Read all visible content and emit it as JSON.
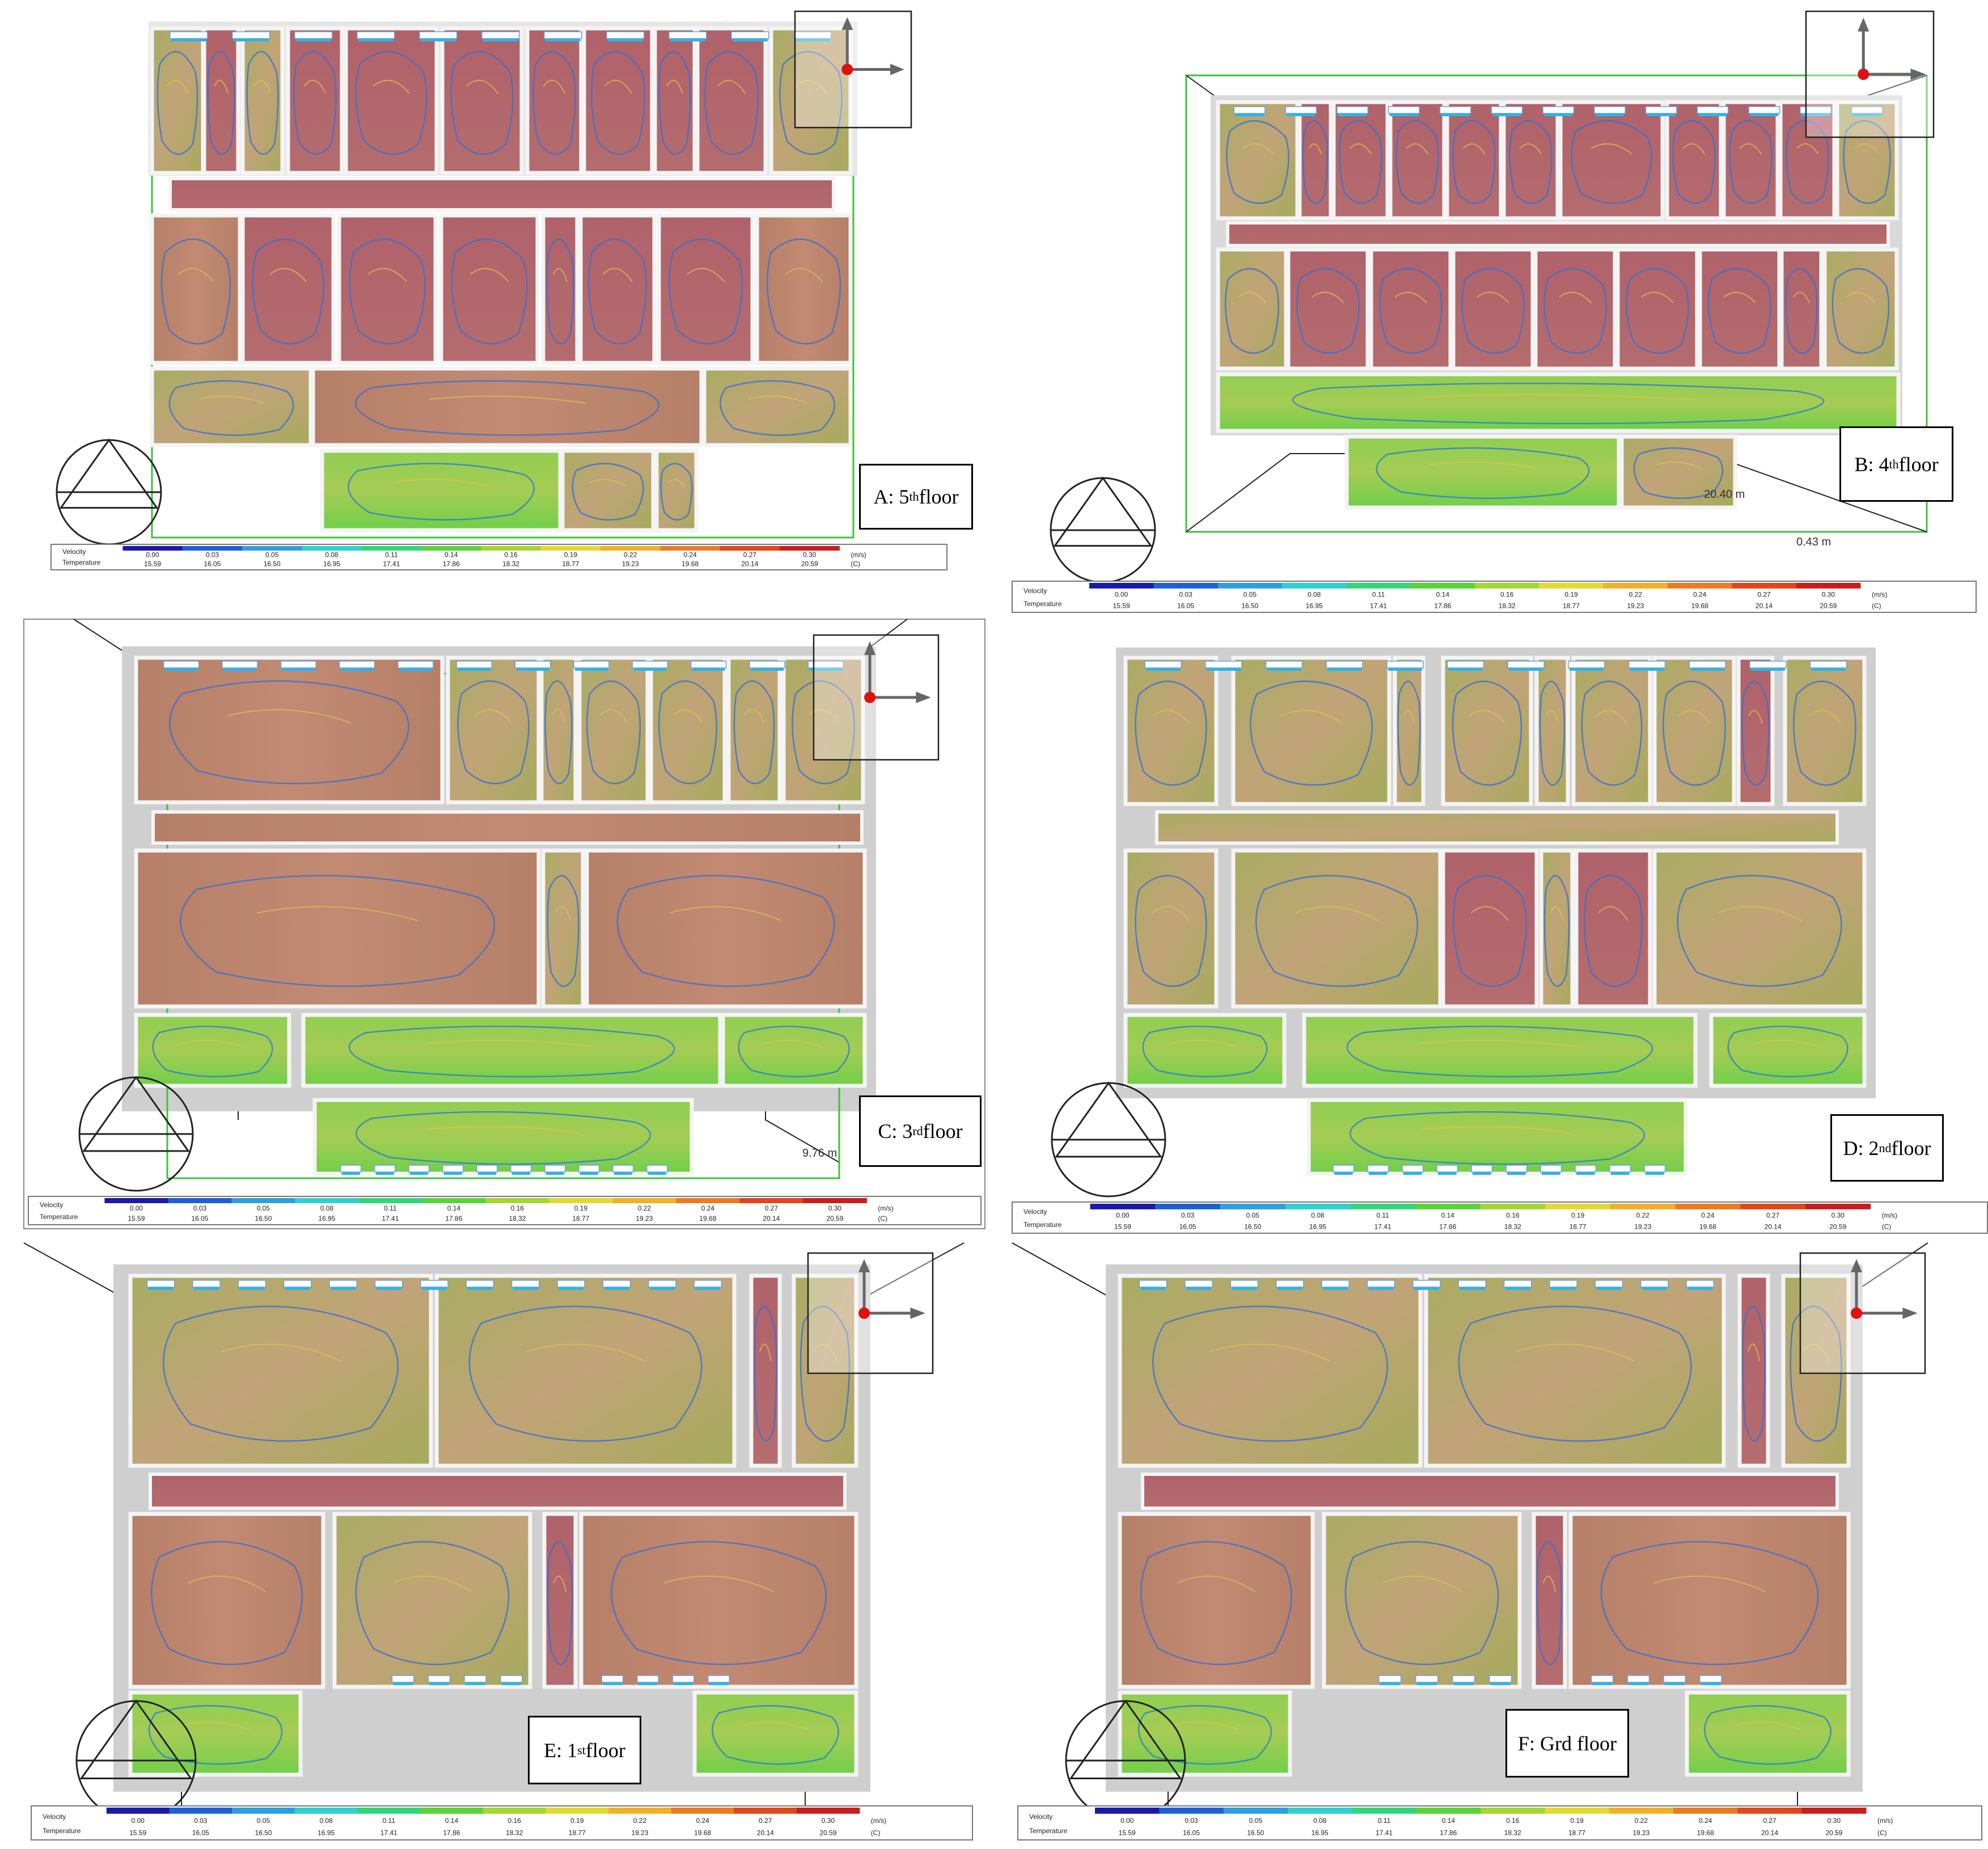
{
  "legend": {
    "velocity_label": "Velocity",
    "temperature_label": "Temperature",
    "velocity_unit": "(m/s)",
    "temperature_unit": "(C)",
    "velocity_ticks": [
      "0.00",
      "0.03",
      "0.05",
      "0.08",
      "0.11",
      "0.14",
      "0.16",
      "0.19",
      "0.22",
      "0.24",
      "0.27",
      "0.30"
    ],
    "temperature_ticks": [
      "15.59",
      "16.05",
      "16.50",
      "16.95",
      "17.41",
      "17.86",
      "18.32",
      "18.77",
      "19.23",
      "19.68",
      "20.14",
      "20.59"
    ],
    "colors": [
      "#1a1aa8",
      "#1f5fd6",
      "#2f9ee0",
      "#2fd0d0",
      "#33d57a",
      "#5ad23a",
      "#a4d634",
      "#e4d834",
      "#f0b02a",
      "#ec7a22",
      "#e0461c",
      "#c81e1e"
    ]
  },
  "panels": [
    {
      "id": "A",
      "prefix": "A: 5",
      "sup": "th",
      "suffix": " floor",
      "dimension": "",
      "dimension2": ""
    },
    {
      "id": "B",
      "prefix": "B: 4",
      "sup": "th",
      "suffix": " floor",
      "dimension": "20.40 m",
      "dimension2": "0.43 m"
    },
    {
      "id": "C",
      "prefix": "C: 3",
      "sup": "rd",
      "suffix": " floor",
      "dimension": "9.76 m",
      "dimension2": ""
    },
    {
      "id": "D",
      "prefix": "D: 2",
      "sup": "nd",
      "suffix": " floor",
      "dimension": "",
      "dimension2": ""
    },
    {
      "id": "E",
      "prefix": "E: 1",
      "sup": "st",
      "suffix": " floor",
      "dimension": "",
      "dimension2": ""
    },
    {
      "id": "F",
      "prefix": "F: Grd floor",
      "sup": "",
      "suffix": "",
      "dimension": "",
      "dimension2": ""
    }
  ]
}
